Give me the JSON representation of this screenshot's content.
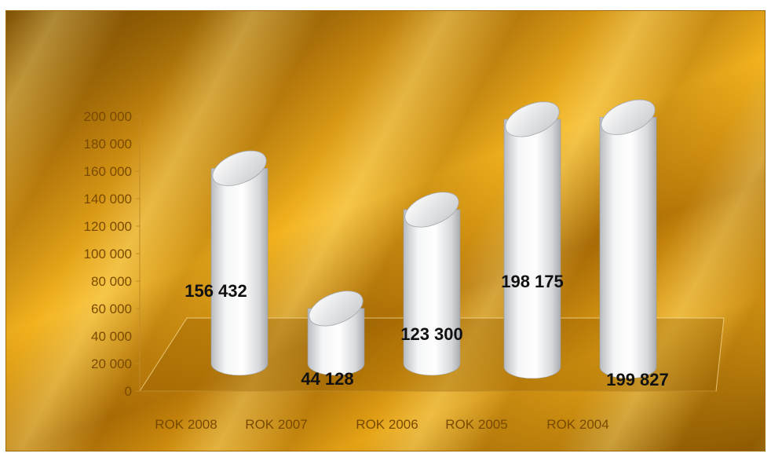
{
  "chart_data": {
    "type": "bar",
    "categories": [
      "ROK  2008",
      "ROK  2007",
      "ROK 2006",
      "ROK  2005",
      "ROK 2004"
    ],
    "values": [
      156432,
      44128,
      123300,
      198175,
      199827
    ],
    "data_labels": [
      "156 432",
      "44 128",
      "123 300",
      "198 175",
      "199 827"
    ],
    "yticks": [
      "0",
      "20 000",
      "40 000",
      "60 000",
      "80 000",
      "100 000",
      "120 000",
      "140 000",
      "160 000",
      "180 000",
      "200 000"
    ],
    "ylim": [
      0,
      200000
    ],
    "title": "",
    "xlabel": "",
    "ylabel": "",
    "grid": false,
    "style": "3d-cylinder",
    "colors": {
      "background": "#d9960f",
      "bar": "#e6e8ea",
      "text": "#7a4a00",
      "label": "#111111"
    }
  }
}
